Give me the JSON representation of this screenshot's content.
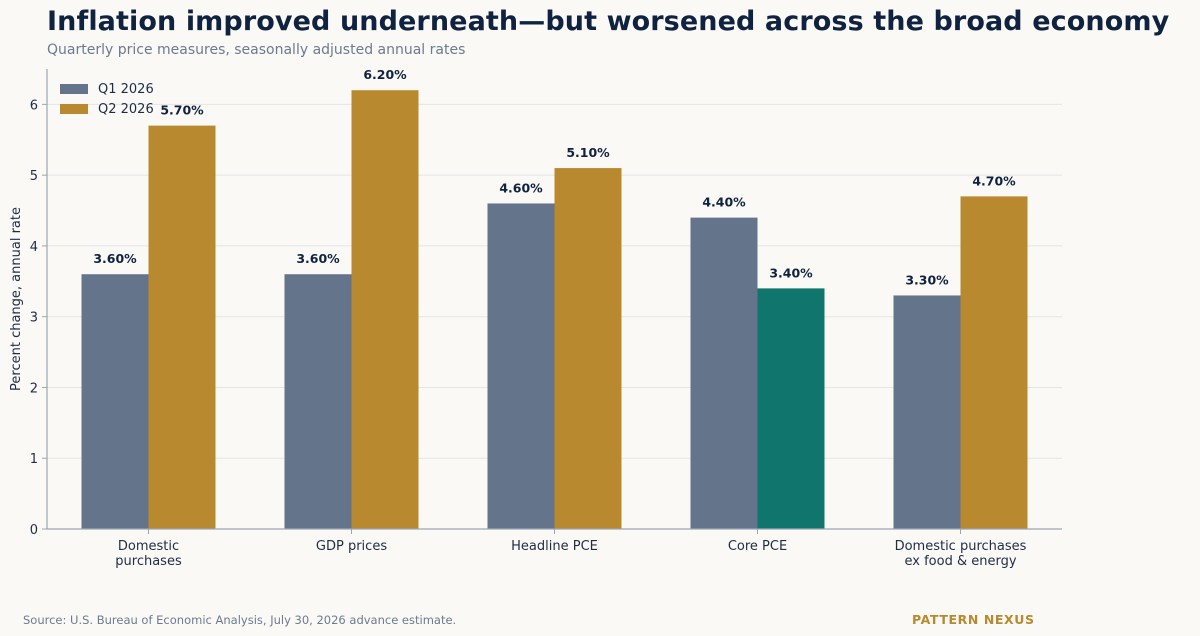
{
  "title": "Inflation improved underneath—but worsened across the broad economy",
  "subtitle": "Quarterly price measures, seasonally adjusted annual rates",
  "source": "Source: U.S. Bureau of Economic Analysis, July 30, 2026 advance estimate.",
  "brand": "PATTERN NEXUS",
  "colors": {
    "q1": "#63748b",
    "q2": "#b8892e",
    "highlight": "#10766d",
    "axis": "#9aa6b3",
    "grid": "#e3e5e6",
    "text": "#1e2d45",
    "label": "#0f2340"
  },
  "chart_data": {
    "type": "bar",
    "title": "Inflation improved underneath—but worsened across the broad economy",
    "subtitle": "Quarterly price measures, seasonally adjusted annual rates",
    "xlabel": "",
    "ylabel": "Percent change, annual rate",
    "ylim": [
      0,
      6.5
    ],
    "yticks": [
      "0",
      "1",
      "2",
      "3",
      "4",
      "5",
      "6"
    ],
    "grid": true,
    "legend_position": "top-left",
    "categories": [
      [
        "Domestic",
        "purchases"
      ],
      [
        "GDP prices"
      ],
      [
        "Headline PCE"
      ],
      [
        "Core PCE"
      ],
      [
        "Domestic purchases",
        "ex food & energy"
      ]
    ],
    "series": [
      {
        "name": "Q1 2026",
        "values": [
          3.6,
          3.6,
          4.6,
          4.4,
          3.3
        ],
        "labels": [
          "3.60%",
          "3.60%",
          "4.60%",
          "4.40%",
          "3.30%"
        ]
      },
      {
        "name": "Q2 2026",
        "values": [
          5.7,
          6.2,
          5.1,
          3.4,
          4.7
        ],
        "labels": [
          "5.70%",
          "6.20%",
          "5.10%",
          "3.40%",
          "4.70%"
        ],
        "highlight_index": 3
      }
    ]
  }
}
